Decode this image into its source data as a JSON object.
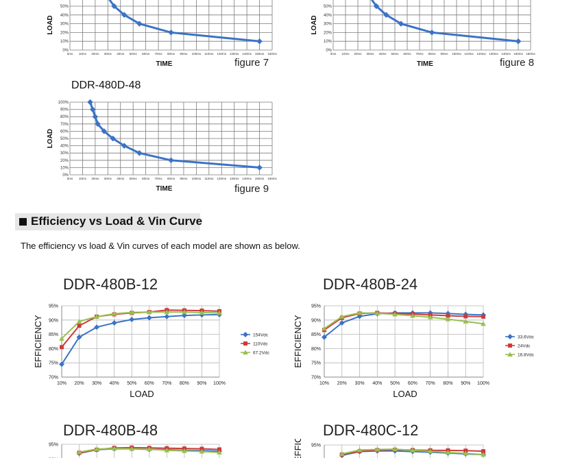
{
  "derating": {
    "y_axis_label": "LOAD",
    "x_axis_label": "TIME",
    "y_ticks": [
      "0%",
      "10%",
      "20%",
      "30%",
      "40%",
      "50%",
      "60%",
      "70%",
      "80%",
      "90%",
      "100%"
    ],
    "x_ticks": [
      "0ms",
      "10ms",
      "20ms",
      "30ms",
      "40ms",
      "50ms",
      "60ms",
      "70ms",
      "80ms",
      "90ms",
      "100ms",
      "110ms",
      "120ms",
      "130ms",
      "140ms",
      "150ms",
      "160ms"
    ],
    "figures": [
      {
        "title": "",
        "label": "figure 7"
      },
      {
        "title": "",
        "label": "figure 8"
      },
      {
        "title": "DDR-480D-48",
        "label": "figure 9"
      }
    ]
  },
  "section": {
    "title": "Efficiency vs Load & Vin Curve",
    "description": "The efficiency  vs  load & Vin curves of each model are shown as below."
  },
  "efficiency": {
    "y_axis_label": "EFFICIENCY",
    "x_axis_label": "LOAD",
    "x_ticks": [
      "10%",
      "20%",
      "30%",
      "40%",
      "50%",
      "60%",
      "70%",
      "80%",
      "90%",
      "100%"
    ],
    "y_ticks": [
      "70%",
      "75%",
      "80%",
      "85%",
      "90%",
      "95%"
    ],
    "charts": [
      {
        "title": "DDR-480B-12",
        "legend": [
          "154Vdc",
          "110Vdc",
          "67.2Vdc"
        ]
      },
      {
        "title": "DDR-480B-24",
        "legend": [
          "33.6Vdc",
          "24Vdc",
          "16.8Vdc"
        ]
      },
      {
        "title": "DDR-480B-48",
        "legend": []
      },
      {
        "title": "DDR-480C-12",
        "legend": []
      }
    ]
  },
  "colors": {
    "blue": "#3b73c5",
    "red": "#cc3b3b",
    "green": "#97c04f",
    "grid": "#7a7a7a"
  },
  "chart_data": [
    {
      "type": "line",
      "xlabel": "TIME",
      "ylabel": "LOAD",
      "xlim": [
        0,
        160
      ],
      "ylim": [
        0,
        100
      ],
      "series": [
        {
          "x": [
            16,
            18,
            20,
            25,
            30,
            35,
            43,
            55,
            80,
            150
          ],
          "values": [
            100,
            90,
            80,
            70,
            60,
            50,
            40,
            30,
            20,
            10
          ]
        }
      ]
    },
    {
      "type": "line",
      "xlabel": "TIME",
      "ylabel": "LOAD",
      "xlim": [
        0,
        160
      ],
      "ylim": [
        0,
        100
      ],
      "series": [
        {
          "x": [
            16,
            18,
            20,
            25,
            30,
            35,
            43,
            55,
            80,
            150
          ],
          "values": [
            100,
            90,
            80,
            70,
            60,
            50,
            40,
            30,
            20,
            10
          ]
        }
      ]
    },
    {
      "type": "line",
      "title": "DDR-480D-48",
      "xlabel": "TIME",
      "ylabel": "LOAD",
      "xlim": [
        0,
        160
      ],
      "ylim": [
        0,
        100
      ],
      "series": [
        {
          "x": [
            16,
            18,
            20,
            22,
            27,
            34,
            43,
            55,
            80,
            150
          ],
          "values": [
            100,
            90,
            80,
            70,
            60,
            50,
            40,
            30,
            20,
            10
          ]
        }
      ]
    },
    {
      "type": "line",
      "title": "DDR-480B-12",
      "xlabel": "LOAD",
      "ylabel": "EFFICIENCY",
      "categories": [
        "10%",
        "20%",
        "30%",
        "40%",
        "50%",
        "60%",
        "70%",
        "80%",
        "90%",
        "100%"
      ],
      "ylim": [
        70,
        95
      ],
      "series": [
        {
          "name": "154Vdc",
          "values": [
            74.5,
            84,
            87.5,
            89,
            90.2,
            90.8,
            91.2,
            91.6,
            91.8,
            91.9
          ]
        },
        {
          "name": "110Vdc",
          "values": [
            80.5,
            88,
            91.2,
            92,
            92.5,
            92.8,
            93.5,
            93.4,
            93.3,
            93.1
          ]
        },
        {
          "name": "67.2Vdc",
          "values": [
            83.5,
            89.5,
            91.2,
            92.2,
            92.7,
            92.8,
            92.8,
            92.8,
            92.6,
            92.5
          ]
        }
      ]
    },
    {
      "type": "line",
      "title": "DDR-480B-24",
      "xlabel": "LOAD",
      "ylabel": "EFFICIENCY",
      "categories": [
        "10%",
        "20%",
        "30%",
        "40%",
        "50%",
        "60%",
        "70%",
        "80%",
        "90%",
        "100%"
      ],
      "ylim": [
        70,
        95
      ],
      "series": [
        {
          "name": "33.6Vdc",
          "values": [
            84,
            89,
            91.3,
            92.2,
            92.5,
            92.5,
            92.5,
            92.3,
            92,
            91.8
          ]
        },
        {
          "name": "24Vdc",
          "values": [
            86.5,
            90.8,
            92.3,
            92.5,
            92.3,
            92.1,
            91.8,
            91.5,
            91.3,
            91.2
          ]
        },
        {
          "name": "16.8Vdc",
          "values": [
            87,
            91.2,
            92.5,
            92.4,
            92,
            91.5,
            91,
            90.3,
            89.5,
            88.7
          ]
        }
      ]
    },
    {
      "type": "line",
      "title": "DDR-480B-48",
      "xlabel": "LOAD",
      "ylabel": "EFFICIENCY",
      "categories": [
        "10%",
        "20%",
        "30%",
        "40%",
        "50%",
        "60%",
        "70%",
        "80%",
        "90%",
        "100%"
      ],
      "ylim": [
        70,
        95
      ],
      "series": [
        {
          "values": [
            null,
            92.0,
            93.2,
            93.5,
            93.5,
            93.3,
            93.2,
            93.0,
            92.9,
            92.7
          ]
        },
        {
          "values": [
            null,
            92.2,
            93.2,
            93.8,
            93.9,
            93.8,
            93.7,
            93.6,
            93.5,
            93.3
          ]
        },
        {
          "values": [
            null,
            92.4,
            93.4,
            93.6,
            93.5,
            93.4,
            93.0,
            92.8,
            92.6,
            92.3
          ]
        }
      ]
    },
    {
      "type": "line",
      "title": "DDR-480C-12",
      "xlabel": "LOAD",
      "ylabel": "EFFICIENCY",
      "categories": [
        "10%",
        "20%",
        "30%",
        "40%",
        "50%",
        "60%",
        "70%",
        "80%",
        "90%",
        "100%"
      ],
      "ylim": [
        70,
        95
      ],
      "series": [
        {
          "values": [
            null,
            91.5,
            92.8,
            93.0,
            93.0,
            92.8,
            92.6,
            92.3,
            92.0,
            91.8
          ]
        },
        {
          "values": [
            null,
            91.8,
            92.9,
            93.3,
            93.4,
            93.3,
            93.2,
            93.2,
            93.1,
            92.9
          ]
        },
        {
          "values": [
            null,
            92.0,
            93.3,
            93.5,
            93.6,
            93.2,
            92.9,
            92.5,
            92.2,
            91.8
          ]
        }
      ]
    }
  ]
}
